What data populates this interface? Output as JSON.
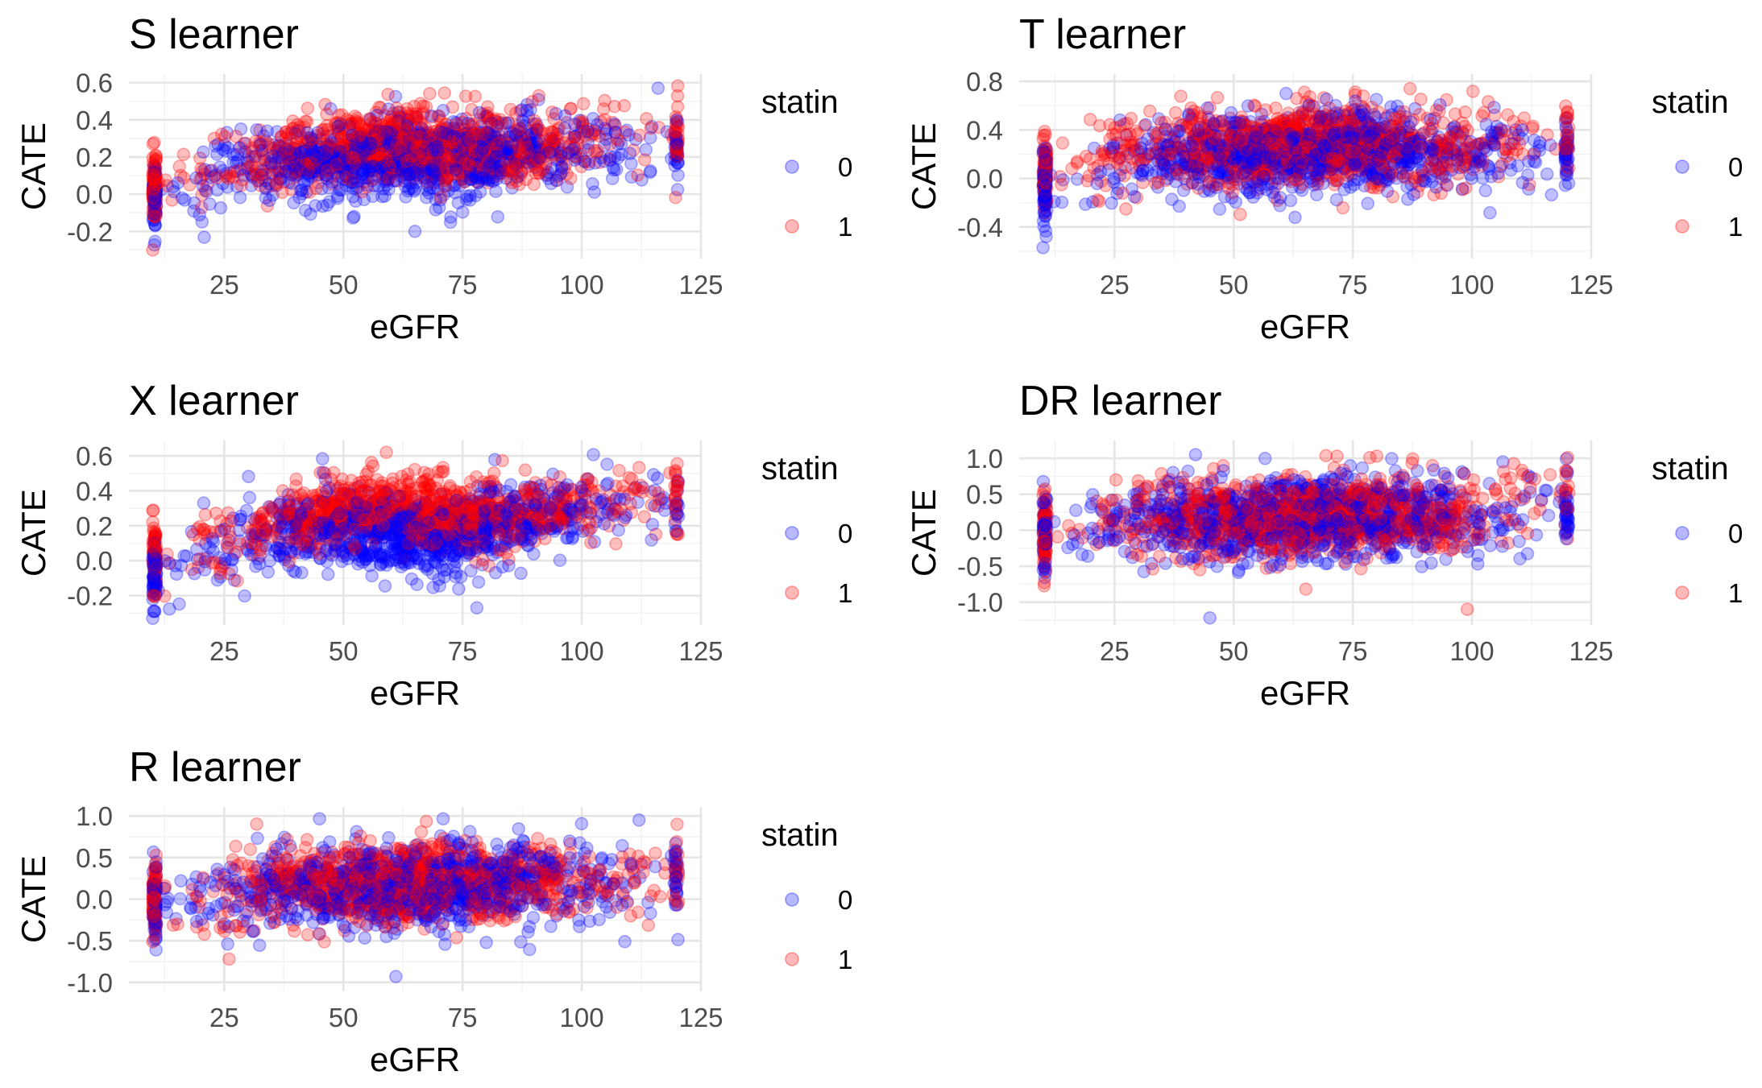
{
  "colors": {
    "statin_0": "#0000ff",
    "statin_1": "#ff0000",
    "grid_major": "#e5e5e5",
    "grid_minor": "#f2f2f2",
    "tick_text": "#4d4d4d"
  },
  "chart_data": [
    {
      "type": "scatter",
      "title": "S learner",
      "xlabel": "eGFR",
      "ylabel": "CATE",
      "xlim": [
        5,
        125
      ],
      "ylim": [
        -0.32,
        0.62
      ],
      "xticks": [
        25,
        50,
        75,
        100,
        125
      ],
      "yticks": [
        -0.2,
        0.0,
        0.2,
        0.4,
        0.6
      ],
      "ytick_labels": [
        "-0.2",
        "0.0",
        "0.2",
        "0.4",
        "0.6"
      ],
      "grid": true,
      "legend": {
        "title": "statin",
        "entries": [
          "0",
          "1"
        ],
        "placement": "right"
      },
      "series": [
        {
          "name": "0",
          "color": "#0000ff",
          "alpha": 0.25,
          "trend": [
            [
              10,
              -0.02
            ],
            [
              30,
              0.14
            ],
            [
              50,
              0.18
            ],
            [
              60,
              0.2
            ],
            [
              75,
              0.18
            ],
            [
              90,
              0.24
            ],
            [
              110,
              0.24
            ],
            [
              120,
              0.22
            ]
          ],
          "spread": 0.13
        },
        {
          "name": "1",
          "color": "#ff0000",
          "alpha": 0.25,
          "trend": [
            [
              10,
              0.04
            ],
            [
              30,
              0.18
            ],
            [
              45,
              0.24
            ],
            [
              60,
              0.28
            ],
            [
              75,
              0.24
            ],
            [
              90,
              0.24
            ],
            [
              110,
              0.3
            ],
            [
              120,
              0.34
            ]
          ],
          "spread": 0.12
        }
      ],
      "extremes": [
        [
          116,
          0.57
        ],
        [
          10,
          -0.3
        ],
        [
          65,
          -0.2
        ],
        [
          91,
          0.53
        ]
      ]
    },
    {
      "type": "scatter",
      "title": "T learner",
      "xlabel": "eGFR",
      "ylabel": "CATE",
      "xlim": [
        5,
        125
      ],
      "ylim": [
        -0.62,
        0.82
      ],
      "xticks": [
        25,
        50,
        75,
        100,
        125
      ],
      "yticks": [
        -0.4,
        0.0,
        0.4,
        0.8
      ],
      "ytick_labels": [
        "-0.4",
        "0.0",
        "0.4",
        "0.8"
      ],
      "grid": true,
      "legend": {
        "title": "statin",
        "entries": [
          "0",
          "1"
        ],
        "placement": "right"
      },
      "series": [
        {
          "name": "0",
          "color": "#0000ff",
          "alpha": 0.25,
          "trend": [
            [
              10,
              -0.05
            ],
            [
              30,
              0.15
            ],
            [
              50,
              0.2
            ],
            [
              65,
              0.22
            ],
            [
              80,
              0.25
            ],
            [
              100,
              0.2
            ],
            [
              120,
              0.18
            ]
          ],
          "spread": 0.2
        },
        {
          "name": "1",
          "color": "#ff0000",
          "alpha": 0.25,
          "trend": [
            [
              10,
              0.05
            ],
            [
              30,
              0.22
            ],
            [
              50,
              0.25
            ],
            [
              65,
              0.3
            ],
            [
              80,
              0.25
            ],
            [
              100,
              0.22
            ],
            [
              120,
              0.35
            ]
          ],
          "spread": 0.2
        }
      ],
      "extremes": [
        [
          10,
          -0.57
        ],
        [
          87,
          0.74
        ],
        [
          61,
          0.7
        ],
        [
          120,
          0.55
        ]
      ]
    },
    {
      "type": "scatter",
      "title": "X learner",
      "xlabel": "eGFR",
      "ylabel": "CATE",
      "xlim": [
        5,
        125
      ],
      "ylim": [
        -0.34,
        0.66
      ],
      "xticks": [
        25,
        50,
        75,
        100,
        125
      ],
      "yticks": [
        -0.2,
        0.0,
        0.2,
        0.4,
        0.6
      ],
      "ytick_labels": [
        "-0.2",
        "0.0",
        "0.2",
        "0.4",
        "0.6"
      ],
      "grid": true,
      "legend": {
        "title": "statin",
        "entries": [
          "0",
          "1"
        ],
        "placement": "right"
      },
      "series": [
        {
          "name": "0",
          "color": "#0000ff",
          "alpha": 0.25,
          "trend": [
            [
              10,
              -0.1
            ],
            [
              25,
              0.08
            ],
            [
              40,
              0.2
            ],
            [
              55,
              0.16
            ],
            [
              70,
              0.12
            ],
            [
              90,
              0.26
            ],
            [
              110,
              0.3
            ],
            [
              120,
              0.32
            ]
          ],
          "spread": 0.14
        },
        {
          "name": "1",
          "color": "#ff0000",
          "alpha": 0.25,
          "trend": [
            [
              10,
              0.02
            ],
            [
              25,
              0.12
            ],
            [
              40,
              0.24
            ],
            [
              60,
              0.32
            ],
            [
              75,
              0.24
            ],
            [
              90,
              0.28
            ],
            [
              110,
              0.34
            ],
            [
              120,
              0.36
            ]
          ],
          "spread": 0.13
        }
      ],
      "extremes": [
        [
          10,
          -0.33
        ],
        [
          59,
          0.62
        ],
        [
          78,
          -0.27
        ],
        [
          120,
          0.45
        ]
      ]
    },
    {
      "type": "scatter",
      "title": "DR learner",
      "xlabel": "eGFR",
      "ylabel": "CATE",
      "xlim": [
        5,
        125
      ],
      "ylim": [
        -1.25,
        1.18
      ],
      "xticks": [
        25,
        50,
        75,
        100,
        125
      ],
      "yticks": [
        -1.0,
        -0.5,
        0.0,
        0.5,
        1.0
      ],
      "ytick_labels": [
        "-1.0",
        "-0.5",
        "0.0",
        "0.5",
        "1.0"
      ],
      "grid": true,
      "legend": {
        "title": "statin",
        "entries": [
          "0",
          "1"
        ],
        "placement": "right"
      },
      "series": [
        {
          "name": "0",
          "color": "#0000ff",
          "alpha": 0.25,
          "trend": [
            [
              10,
              -0.1
            ],
            [
              30,
              0.1
            ],
            [
              60,
              0.15
            ],
            [
              90,
              0.2
            ],
            [
              120,
              0.3
            ]
          ],
          "spread": 0.35
        },
        {
          "name": "1",
          "color": "#ff0000",
          "alpha": 0.25,
          "trend": [
            [
              10,
              0.0
            ],
            [
              30,
              0.15
            ],
            [
              60,
              0.2
            ],
            [
              90,
              0.2
            ],
            [
              120,
              0.35
            ]
          ],
          "spread": 0.35
        }
      ],
      "extremes": [
        [
          45,
          -1.22
        ],
        [
          99,
          -1.1
        ],
        [
          42,
          1.05
        ],
        [
          80,
          1.03
        ]
      ]
    },
    {
      "type": "scatter",
      "title": "R learner",
      "xlabel": "eGFR",
      "ylabel": "CATE",
      "xlim": [
        5,
        125
      ],
      "ylim": [
        -1.05,
        1.05
      ],
      "xticks": [
        25,
        50,
        75,
        100,
        125
      ],
      "yticks": [
        -1.0,
        -0.5,
        0.0,
        0.5,
        1.0
      ],
      "ytick_labels": [
        "-1.0",
        "-0.5",
        "0.0",
        "0.5",
        "1.0"
      ],
      "grid": true,
      "legend": {
        "title": "statin",
        "entries": [
          "0",
          "1"
        ],
        "placement": "right"
      },
      "series": [
        {
          "name": "0",
          "color": "#0000ff",
          "alpha": 0.25,
          "trend": [
            [
              10,
              -0.1
            ],
            [
              30,
              0.1
            ],
            [
              60,
              0.15
            ],
            [
              90,
              0.2
            ],
            [
              110,
              0.2
            ],
            [
              120,
              0.3
            ]
          ],
          "spread": 0.3
        },
        {
          "name": "1",
          "color": "#ff0000",
          "alpha": 0.25,
          "trend": [
            [
              10,
              0.0
            ],
            [
              30,
              0.15
            ],
            [
              60,
              0.2
            ],
            [
              90,
              0.2
            ],
            [
              110,
              0.25
            ],
            [
              120,
              0.35
            ]
          ],
          "spread": 0.3
        }
      ],
      "extremes": [
        [
          61,
          -0.93
        ],
        [
          26,
          -0.72
        ],
        [
          112,
          0.95
        ],
        [
          120,
          0.9
        ]
      ]
    }
  ]
}
